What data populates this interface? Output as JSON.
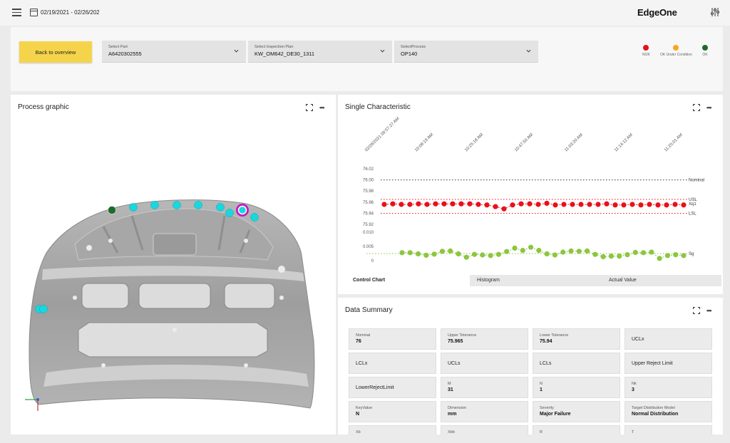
{
  "header": {
    "date_range": "02/19/2021 - 02/26/202",
    "brand": "EdgeOne"
  },
  "filters": {
    "back_label": "Back to overview",
    "part": {
      "label": "Select Part",
      "value": "A6420302555"
    },
    "plan": {
      "label": "Select Inspection Plan",
      "value": "KW_OM642_DE30_1311"
    },
    "process": {
      "label": "SelectProcess",
      "value": "OP140"
    }
  },
  "legend": [
    {
      "label": "NOK",
      "color": "#e8101a"
    },
    {
      "label": "OK Under Condition",
      "color": "#f5a623"
    },
    {
      "label": "OK",
      "color": "#1e6b2a"
    }
  ],
  "process_card": {
    "title": "Process graphic"
  },
  "single_card": {
    "title": "Single Characteristic"
  },
  "summary_card": {
    "title": "Data Summary"
  },
  "chart_tabs": {
    "control": "Control Chart",
    "histogram": "Histogram",
    "actual": "Actual Value"
  },
  "chart_data": {
    "type": "line",
    "time_labels": [
      "02/26/2021 09:57:27 AM",
      "10:08:19 AM",
      "10:25:18 AM",
      "10:47:50 AM",
      "11:03:20 AM",
      "11:14:12 AM",
      "11:25:01 AM"
    ],
    "upper": {
      "yticks": [
        "76.02",
        "76.00",
        "75.98",
        "75.96",
        "75.94",
        "75.92"
      ],
      "ylim": [
        75.91,
        76.025
      ],
      "lines": [
        {
          "name": "Nominal",
          "value": 76.0,
          "color": "#333333"
        },
        {
          "name": "USL",
          "value": 75.965,
          "color": "#e8101a"
        },
        {
          "name": "Xq1",
          "value": 75.957,
          "color": "#e8101a"
        },
        {
          "name": "LSL",
          "value": 75.94,
          "color": "#e8101a"
        }
      ],
      "series_color": "#e8101a",
      "values": [
        75.956,
        75.957,
        75.956,
        75.956,
        75.957,
        75.956,
        75.957,
        75.957,
        75.957,
        75.957,
        75.957,
        75.956,
        75.955,
        75.952,
        75.948,
        75.955,
        75.957,
        75.957,
        75.956,
        75.958,
        75.955,
        75.956,
        75.956,
        75.956,
        75.956,
        75.956,
        75.957,
        75.955,
        75.955,
        75.956,
        75.955,
        75.956,
        75.955,
        75.955,
        75.956,
        75.955
      ]
    },
    "lower": {
      "yticks": [
        "0.010",
        "0.005",
        "0"
      ],
      "ylim": [
        0,
        0.012
      ],
      "lines": [
        {
          "name": "Sg",
          "value": 0.0025,
          "color": "#8cc63f"
        }
      ],
      "series_color": "#8cc63f",
      "values": [
        0.0028,
        0.0028,
        0.0024,
        0.0019,
        0.0023,
        0.0033,
        0.0034,
        0.0024,
        0.0012,
        0.0022,
        0.002,
        0.0018,
        0.0022,
        0.0032,
        0.0044,
        0.0036,
        0.0047,
        0.0036,
        0.0024,
        0.002,
        0.003,
        0.0034,
        0.0033,
        0.0034,
        0.0022,
        0.0014,
        0.0016,
        0.0016,
        0.0021,
        0.0029,
        0.0028,
        0.003,
        0.0008,
        0.0018,
        0.0021,
        0.0018
      ]
    }
  },
  "summary": [
    {
      "key": "Nominal",
      "value": "76"
    },
    {
      "key": "Upper Tolerance",
      "value": "75.965"
    },
    {
      "key": "Lower Tolerance",
      "value": "75.94"
    },
    {
      "key": "",
      "value": "UCLx",
      "plain": true
    },
    {
      "key": "",
      "value": "LCLx",
      "plain": true
    },
    {
      "key": "",
      "value": "UCLs",
      "plain": true
    },
    {
      "key": "",
      "value": "LCLs",
      "plain": true
    },
    {
      "key": "",
      "value": "Upper Reject Limit",
      "plain": true
    },
    {
      "key": "",
      "value": "LowerRejectLimit",
      "plain": true
    },
    {
      "key": "M",
      "value": "31"
    },
    {
      "key": "N",
      "value": "1"
    },
    {
      "key": "Nk",
      "value": "3"
    },
    {
      "key": "KeyValue",
      "value": "N"
    },
    {
      "key": "Dimension",
      "value": "mm"
    },
    {
      "key": "Severity",
      "value": "Major Failure"
    },
    {
      "key": "Target Distribution Model",
      "value": "Normal Distribution"
    },
    {
      "key": "Xb",
      "value": ""
    },
    {
      "key": "Xbb",
      "value": ""
    },
    {
      "key": "R",
      "value": ""
    },
    {
      "key": "T",
      "value": ""
    }
  ],
  "measure_points": {
    "colors": {
      "cyan": "#19d7e0",
      "green": "#1e6b2a",
      "selected": "#c21bc9"
    }
  }
}
